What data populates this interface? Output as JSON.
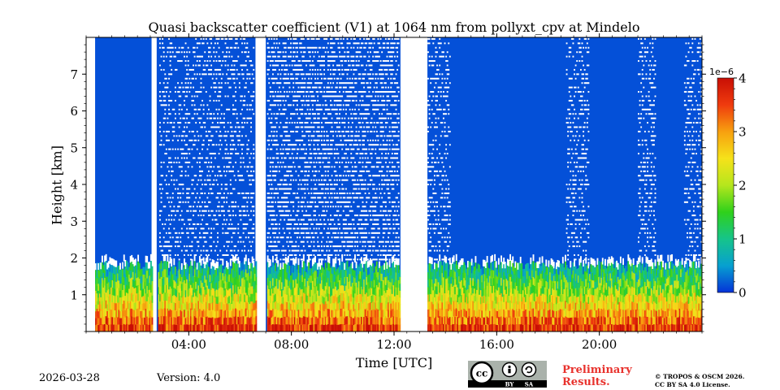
{
  "chart_data": {
    "type": "heatmap",
    "title": "Quasi backscatter coefficient (V1) at 1064 nm from pollyxt_cpv at Mindelo",
    "xlabel": "Time [UTC]",
    "ylabel": "Height [km]",
    "x_range_hours": [
      0,
      24
    ],
    "y_range_km": [
      0,
      8
    ],
    "xticks": [
      "04:00",
      "08:00",
      "12:00",
      "16:00",
      "20:00"
    ],
    "xtick_hours": [
      4,
      8,
      12,
      16,
      20
    ],
    "yticks": [
      "1",
      "2",
      "3",
      "4",
      "5",
      "6",
      "7"
    ],
    "ytick_values": [
      1,
      2,
      3,
      4,
      5,
      6,
      7
    ],
    "colorbar": {
      "exponent_label": "1e−6",
      "ticks": [
        "0",
        "1",
        "2",
        "3",
        "4"
      ],
      "tick_values": [
        0,
        1,
        2,
        3,
        4
      ],
      "range": [
        0,
        4
      ],
      "colormap": [
        "#0432d8",
        "#07a0d0",
        "#16c48a",
        "#2fd11b",
        "#b5e61d",
        "#f6e21a",
        "#f7a00f",
        "#ef3b0e",
        "#c80f05"
      ]
    },
    "no_data_gaps_hours": [
      [
        0.0,
        0.35
      ],
      [
        2.55,
        2.75
      ],
      [
        6.6,
        7.0
      ],
      [
        12.25,
        13.3
      ]
    ],
    "boundary_layer_top_km": 1.8,
    "background_color": "#0450d8"
  },
  "footer": {
    "date": "2026-03-28",
    "version": "Version: 4.0",
    "preliminary_line1": "Preliminary",
    "preliminary_line2": "Results.",
    "copyright_line1": "© TROPOS & OSCM 2026.",
    "copyright_line2": "CC BY SA 4.0 License.",
    "license_badge": {
      "cc": "cc",
      "by": "BY",
      "sa": "SA"
    }
  }
}
